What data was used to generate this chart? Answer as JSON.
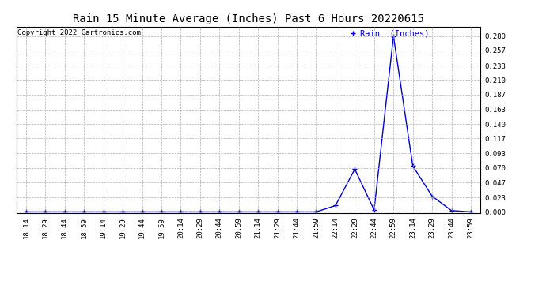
{
  "title": "Rain 15 Minute Average (Inches) Past 6 Hours 20220615",
  "copyright": "Copyright 2022 Cartronics.com",
  "legend_label": "Rain  (Inches)",
  "line_color": "#0000cc",
  "legend_color": "#0000cc",
  "background_color": "#ffffff",
  "grid_color": "#b0b0b0",
  "x_labels": [
    "18:14",
    "18:29",
    "18:44",
    "18:59",
    "19:14",
    "19:29",
    "19:44",
    "19:59",
    "20:14",
    "20:29",
    "20:44",
    "20:59",
    "21:14",
    "21:29",
    "21:44",
    "21:59",
    "22:14",
    "22:29",
    "22:44",
    "22:59",
    "23:14",
    "23:29",
    "23:44",
    "23:59"
  ],
  "y_values": [
    0.0,
    0.0,
    0.0,
    0.0,
    0.0,
    0.0,
    0.0,
    0.0,
    0.0,
    0.0,
    0.0,
    0.0,
    0.0,
    0.0,
    0.0,
    0.0,
    0.01,
    0.068,
    0.003,
    0.28,
    0.073,
    0.025,
    0.002,
    0.0
  ],
  "ylim": [
    -0.002,
    0.295
  ],
  "yticks": [
    0.0,
    0.023,
    0.047,
    0.07,
    0.093,
    0.117,
    0.14,
    0.163,
    0.187,
    0.21,
    0.233,
    0.257,
    0.28
  ],
  "marker": "+",
  "marker_size": 4,
  "line_width": 1.0,
  "title_fontsize": 10,
  "tick_fontsize": 6.5,
  "copyright_fontsize": 6.5,
  "legend_fontsize": 7.5
}
